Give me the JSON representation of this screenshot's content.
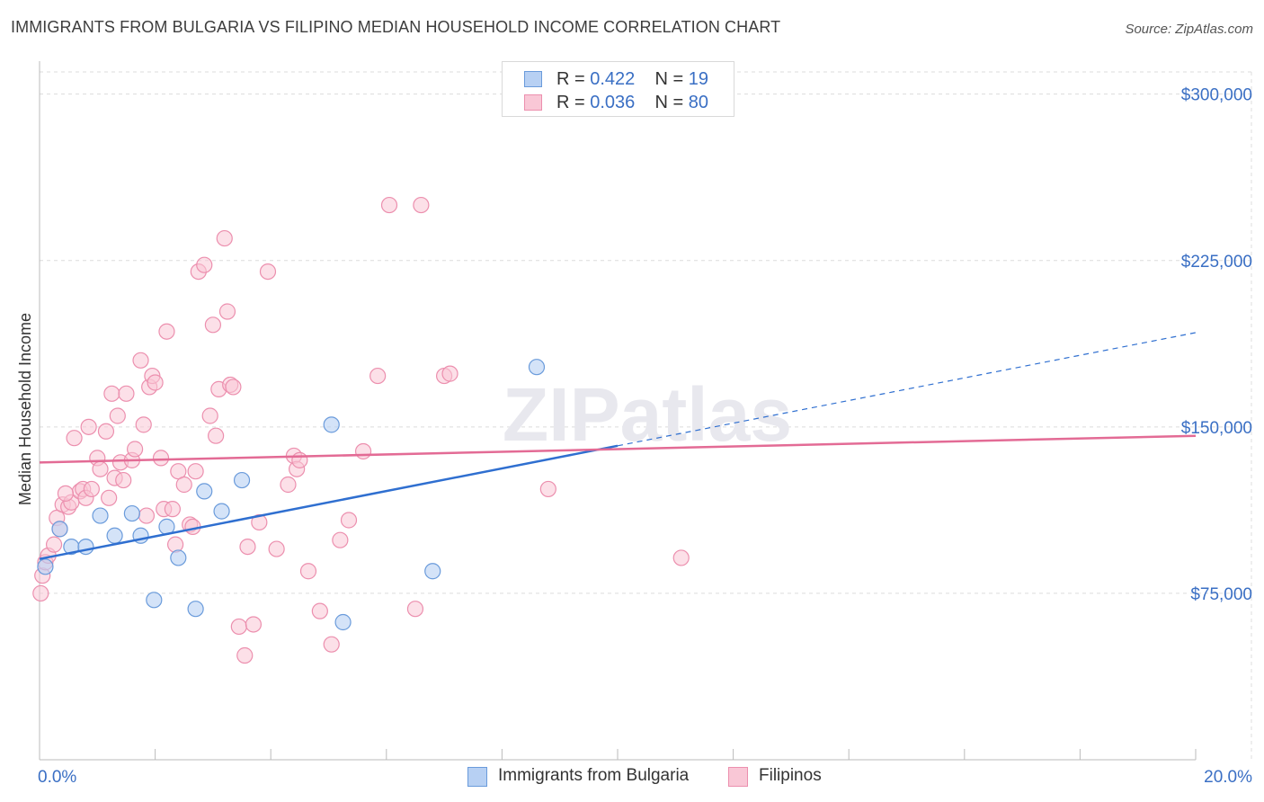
{
  "title": "IMMIGRANTS FROM BULGARIA VS FILIPINO MEDIAN HOUSEHOLD INCOME CORRELATION CHART",
  "source": "Source: ZipAtlas.com",
  "watermark": "ZIPatlas",
  "legend": {
    "rows": [
      {
        "r_label": "R = ",
        "r_value": "0.422",
        "n_label": "N = ",
        "n_value": "19"
      },
      {
        "r_label": "R = ",
        "r_value": "0.036",
        "n_label": "N = ",
        "n_value": "80"
      }
    ]
  },
  "bottom_legend": [
    "Immigrants from Bulgaria",
    "Filipinos"
  ],
  "colors": {
    "blue_fill": "#b7d0f3",
    "blue_stroke": "#6a9bdb",
    "blue_line": "#2f6fd0",
    "pink_fill": "#f9c7d6",
    "pink_stroke": "#ec8fae",
    "pink_line": "#e36b95",
    "axis_label": "#3a6fc4",
    "grid": "#dcdcdc"
  },
  "chart_data": {
    "type": "scatter",
    "title": "IMMIGRANTS FROM BULGARIA VS FILIPINO MEDIAN HOUSEHOLD INCOME CORRELATION CHART",
    "xlabel": "",
    "ylabel": "Median Household Income",
    "xlim": [
      0,
      20
    ],
    "ylim": [
      0,
      310000
    ],
    "x_tick_labels": [
      "0.0%",
      "20.0%"
    ],
    "y_ticks": [
      75000,
      150000,
      225000,
      300000
    ],
    "y_tick_labels": [
      "$75,000",
      "$150,000",
      "$225,000",
      "$300,000"
    ],
    "grid": true,
    "legend_position": "top-center",
    "series": [
      {
        "name": "Immigrants from Bulgaria",
        "points": [
          [
            0.1,
            87000
          ],
          [
            0.35,
            104000
          ],
          [
            0.55,
            96000
          ],
          [
            0.8,
            96000
          ],
          [
            1.05,
            110000
          ],
          [
            1.3,
            101000
          ],
          [
            1.6,
            111000
          ],
          [
            1.75,
            101000
          ],
          [
            1.98,
            72000
          ],
          [
            2.2,
            105000
          ],
          [
            2.4,
            91000
          ],
          [
            2.7,
            68000
          ],
          [
            2.85,
            121000
          ],
          [
            3.15,
            112000
          ],
          [
            3.5,
            126000
          ],
          [
            5.05,
            151000
          ],
          [
            5.25,
            62000
          ],
          [
            6.8,
            85000
          ],
          [
            8.6,
            177000
          ]
        ],
        "trend": {
          "x0": 0,
          "y0": 90500,
          "x1": 10,
          "y1": 141500,
          "dashed_to_x": 20,
          "dashed_to_y": 192500
        }
      },
      {
        "name": "Filipinos",
        "points": [
          [
            0.02,
            75000
          ],
          [
            0.05,
            83000
          ],
          [
            0.1,
            89000
          ],
          [
            0.15,
            92000
          ],
          [
            0.3,
            109000
          ],
          [
            0.35,
            104000
          ],
          [
            0.4,
            115000
          ],
          [
            0.5,
            114000
          ],
          [
            0.55,
            116000
          ],
          [
            0.6,
            145000
          ],
          [
            0.7,
            121000
          ],
          [
            0.75,
            122000
          ],
          [
            0.8,
            118000
          ],
          [
            0.85,
            150000
          ],
          [
            0.9,
            122000
          ],
          [
            1.0,
            136000
          ],
          [
            1.05,
            131000
          ],
          [
            1.15,
            148000
          ],
          [
            1.2,
            118000
          ],
          [
            1.25,
            165000
          ],
          [
            1.3,
            127000
          ],
          [
            1.35,
            155000
          ],
          [
            1.4,
            134000
          ],
          [
            1.45,
            126000
          ],
          [
            1.5,
            165000
          ],
          [
            1.6,
            135000
          ],
          [
            1.65,
            140000
          ],
          [
            1.75,
            180000
          ],
          [
            1.8,
            151000
          ],
          [
            1.85,
            110000
          ],
          [
            1.9,
            168000
          ],
          [
            1.95,
            173000
          ],
          [
            2.0,
            170000
          ],
          [
            2.1,
            136000
          ],
          [
            2.15,
            113000
          ],
          [
            2.2,
            193000
          ],
          [
            2.3,
            113000
          ],
          [
            2.35,
            97000
          ],
          [
            2.4,
            130000
          ],
          [
            2.5,
            124000
          ],
          [
            2.6,
            106000
          ],
          [
            2.65,
            105000
          ],
          [
            2.7,
            130000
          ],
          [
            2.75,
            220000
          ],
          [
            2.85,
            223000
          ],
          [
            2.95,
            155000
          ],
          [
            3.0,
            196000
          ],
          [
            3.05,
            146000
          ],
          [
            3.1,
            167000
          ],
          [
            3.2,
            235000
          ],
          [
            3.25,
            202000
          ],
          [
            3.3,
            169000
          ],
          [
            3.35,
            168000
          ],
          [
            3.45,
            60000
          ],
          [
            3.55,
            47000
          ],
          [
            3.6,
            96000
          ],
          [
            3.7,
            61000
          ],
          [
            3.8,
            107000
          ],
          [
            3.95,
            220000
          ],
          [
            4.1,
            95000
          ],
          [
            4.3,
            124000
          ],
          [
            4.4,
            137000
          ],
          [
            4.45,
            131000
          ],
          [
            4.5,
            135000
          ],
          [
            4.65,
            85000
          ],
          [
            4.85,
            67000
          ],
          [
            5.05,
            52000
          ],
          [
            5.2,
            99000
          ],
          [
            5.35,
            108000
          ],
          [
            5.6,
            139000
          ],
          [
            5.85,
            173000
          ],
          [
            6.05,
            250000
          ],
          [
            6.6,
            250000
          ],
          [
            6.5,
            68000
          ],
          [
            7.0,
            173000
          ],
          [
            7.1,
            174000
          ],
          [
            8.8,
            122000
          ],
          [
            11.1,
            91000
          ],
          [
            0.25,
            97000
          ],
          [
            0.45,
            120000
          ]
        ],
        "trend": {
          "x0": 0,
          "y0": 134000,
          "x1": 20,
          "y1": 146000
        }
      }
    ]
  }
}
